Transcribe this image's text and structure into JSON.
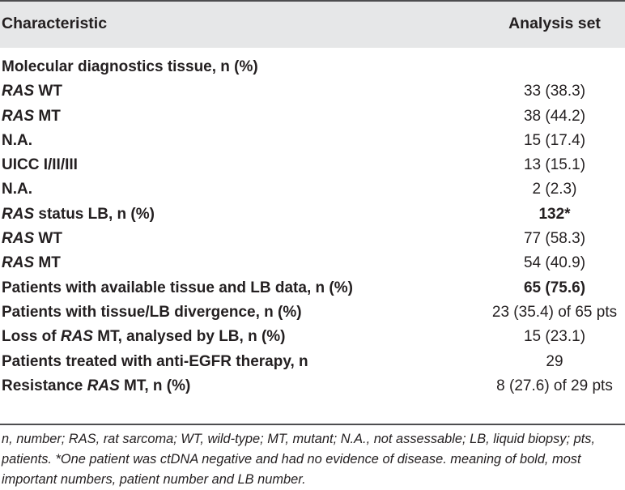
{
  "header": {
    "characteristic": "Characteristic",
    "analysis_set": "Analysis set"
  },
  "rows": [
    {
      "pre": "",
      "italic": "",
      "post": "Molecular diagnostics tissue, n (%)",
      "value": "",
      "value_bold": false
    },
    {
      "pre": "",
      "italic": "RAS",
      "post": " WT",
      "value": "33 (38.3)",
      "value_bold": false
    },
    {
      "pre": "",
      "italic": "RAS",
      "post": " MT",
      "value": "38 (44.2)",
      "value_bold": false
    },
    {
      "pre": "",
      "italic": "",
      "post": "N.A.",
      "value": "15 (17.4)",
      "value_bold": false
    },
    {
      "pre": "",
      "italic": "",
      "post": "UICC I/II/III",
      "value": "13 (15.1)",
      "value_bold": false
    },
    {
      "pre": "",
      "italic": "",
      "post": "N.A.",
      "value": "2 (2.3)",
      "value_bold": false
    },
    {
      "pre": "",
      "italic": "RAS",
      "post": " status LB, n (%)",
      "value": "132*",
      "value_bold": true
    },
    {
      "pre": "",
      "italic": "RAS",
      "post": " WT",
      "value": "77 (58.3)",
      "value_bold": false
    },
    {
      "pre": "",
      "italic": "RAS",
      "post": " MT",
      "value": "54 (40.9)",
      "value_bold": false
    },
    {
      "pre": "",
      "italic": "",
      "post": "Patients with available tissue and LB data, n (%)",
      "value": "65 (75.6)",
      "value_bold": true
    },
    {
      "pre": "",
      "italic": "",
      "post": "Patients with tissue/LB divergence, n (%)",
      "value": "23 (35.4) of 65 pts",
      "value_bold": false
    },
    {
      "pre": "Loss of ",
      "italic": "RAS",
      "post": " MT, analysed by LB, n (%)",
      "value": "15 (23.1)",
      "value_bold": false
    },
    {
      "pre": "",
      "italic": "",
      "post": "Patients treated with anti-EGFR therapy, n",
      "value": "29",
      "value_bold": false
    },
    {
      "pre": "Resistance ",
      "italic": "RAS",
      "post": " MT, n (%)",
      "value": "8 (27.6) of 29 pts",
      "value_bold": false
    }
  ],
  "footnote": "n, number; RAS, rat sarcoma; WT, wild-type; MT, mutant; N.A., not assessable; LB, liquid biopsy; pts, patients. *One patient was ctDNA negative and had no evidence of disease. meaning of bold, most important numbers, patient number and LB number."
}
